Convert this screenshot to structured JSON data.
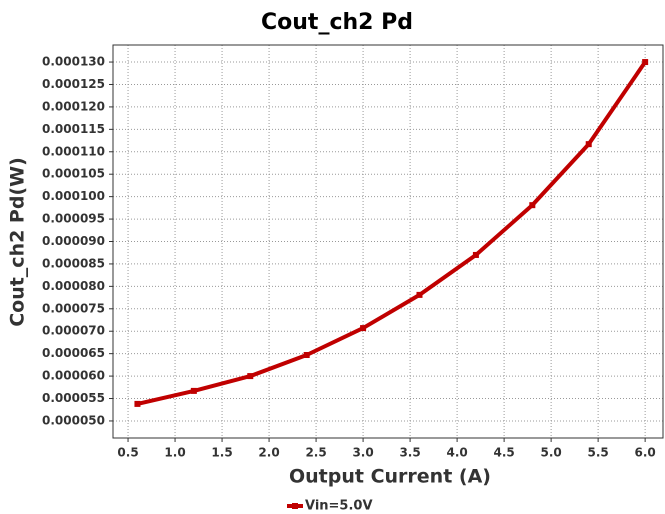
{
  "chart_data": {
    "type": "line",
    "title": "Cout_ch2 Pd",
    "x_label": "Output Current (A)",
    "y_label": "Cout_ch2 Pd(W)",
    "x": [
      0.6,
      1.2,
      1.8,
      2.4,
      3.0,
      3.6,
      4.2,
      4.8,
      5.4,
      6.0
    ],
    "series": [
      {
        "name": "Vin=5.0V",
        "color": "#c00000",
        "values": [
          5.38e-05,
          5.67e-05,
          6e-05,
          6.47e-05,
          7.07e-05,
          7.81e-05,
          8.7e-05,
          9.81e-05,
          0.0001117,
          0.00013
        ]
      }
    ],
    "xlim": [
      0.34,
      6.19
    ],
    "xticks": [
      0.5,
      {
        "value": 1.0,
        "label": "1.0"
      },
      1.5,
      {
        "value": 2.0,
        "label": "2.0"
      },
      2.5,
      {
        "value": 3.0,
        "label": "3.0"
      },
      3.5,
      {
        "value": 4.0,
        "label": "4.0"
      },
      4.5,
      {
        "value": 5.0,
        "label": "5.0"
      },
      5.5,
      {
        "value": 6.0,
        "label": "6.0"
      }
    ],
    "ylim": [
      4.62e-05,
      0.0001338
    ],
    "yticks": [
      {
        "value": 5e-05,
        "label": "0.000050"
      },
      {
        "value": 5.5e-05,
        "label": "0.000055"
      },
      {
        "value": 6e-05,
        "label": "0.000060"
      },
      {
        "value": 6.5e-05,
        "label": "0.000065"
      },
      {
        "value": 7e-05,
        "label": "0.000070"
      },
      {
        "value": 7.5e-05,
        "label": "0.000075"
      },
      {
        "value": 8e-05,
        "label": "0.000080"
      },
      {
        "value": 8.5e-05,
        "label": "0.000085"
      },
      {
        "value": 9e-05,
        "label": "0.000090"
      },
      {
        "value": 9.5e-05,
        "label": "0.000095"
      },
      {
        "value": 0.0001,
        "label": "0.000100"
      },
      {
        "value": 0.000105,
        "label": "0.000105"
      },
      {
        "value": 0.00011,
        "label": "0.000110"
      },
      {
        "value": 0.000115,
        "label": "0.000115"
      },
      {
        "value": 0.00012,
        "label": "0.000120"
      },
      {
        "value": 0.000125,
        "label": "0.000125"
      },
      {
        "value": 0.00013,
        "label": "0.000130"
      }
    ],
    "grid": true,
    "legend": "bottom"
  }
}
